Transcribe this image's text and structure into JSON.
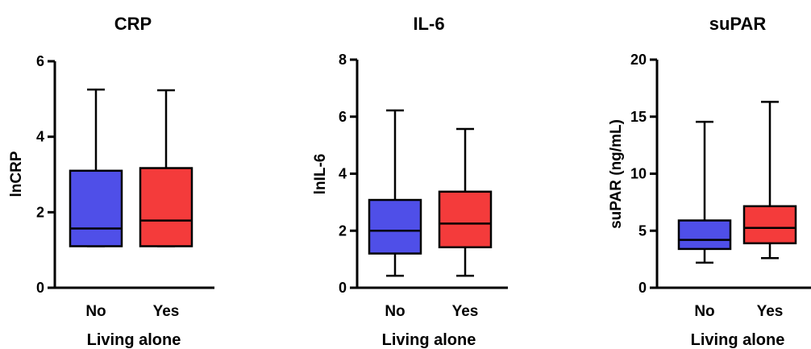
{
  "chart_data": [
    {
      "type": "box",
      "title": "CRP",
      "xlabel": "Living alone",
      "ylabel": "lnCRP",
      "ylim": [
        0,
        6
      ],
      "yticks": [
        "0",
        "2",
        "4",
        "6"
      ],
      "categories": [
        "No",
        "Yes"
      ],
      "boxes": [
        {
          "category": "No",
          "min": 1.1,
          "q1": 1.1,
          "median": 1.57,
          "q3": 3.1,
          "max": 5.25,
          "color": "#4f4fe8"
        },
        {
          "category": "Yes",
          "min": 1.1,
          "q1": 1.1,
          "median": 1.78,
          "q3": 3.17,
          "max": 5.23,
          "color": "#f43b3b"
        }
      ]
    },
    {
      "type": "box",
      "title": "IL-6",
      "xlabel": "Living alone",
      "ylabel": "lnIL-6",
      "ylim": [
        0,
        8
      ],
      "yticks": [
        "0",
        "2",
        "4",
        "6",
        "8"
      ],
      "categories": [
        "No",
        "Yes"
      ],
      "boxes": [
        {
          "category": "No",
          "min": 0.42,
          "q1": 1.2,
          "median": 2.0,
          "q3": 3.08,
          "max": 6.22,
          "color": "#4f4fe8"
        },
        {
          "category": "Yes",
          "min": 0.42,
          "q1": 1.42,
          "median": 2.25,
          "q3": 3.37,
          "max": 5.57,
          "color": "#f43b3b"
        }
      ]
    },
    {
      "type": "box",
      "title": "suPAR",
      "xlabel": "Living alone",
      "ylabel": "suPAR  (ng/mL)",
      "ylim": [
        0,
        20
      ],
      "yticks": [
        "0",
        "5",
        "10",
        "15",
        "20"
      ],
      "categories": [
        "No",
        "Yes"
      ],
      "boxes": [
        {
          "category": "No",
          "min": 2.2,
          "q1": 3.4,
          "median": 4.2,
          "q3": 5.9,
          "max": 14.55,
          "color": "#4f4fe8"
        },
        {
          "category": "Yes",
          "min": 2.6,
          "q1": 3.9,
          "median": 5.25,
          "q3": 7.15,
          "max": 16.3,
          "color": "#f43b3b"
        }
      ]
    }
  ]
}
